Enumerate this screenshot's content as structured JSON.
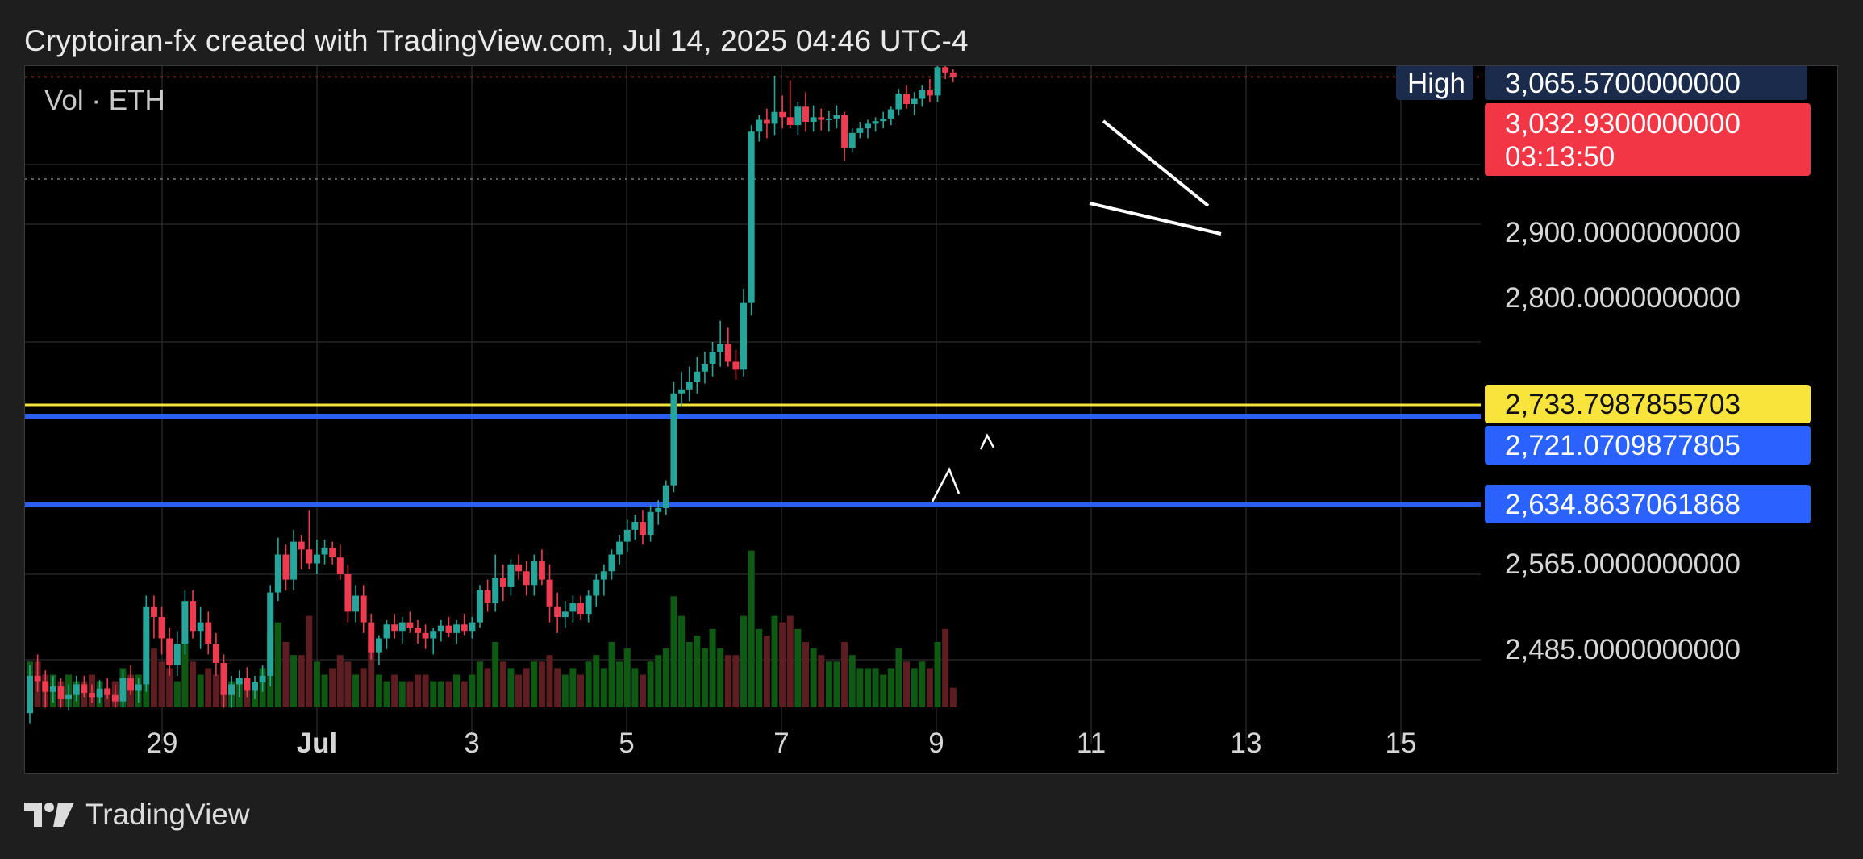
{
  "header": {
    "title": "Cryptoiran-fx created with TradingView.com, Jul 14, 2025 04:46 UTC-4"
  },
  "footer": {
    "brand": "TradingView"
  },
  "colors": {
    "up": "#26a69a",
    "down": "#ef3b50",
    "vol_up": "#0f5a12",
    "vol_down": "#5e1d21",
    "yellow_line": "#f6e33c",
    "blue_line": "#2c5ff0",
    "high_badge": "#1a2b4c",
    "last_badge": "#f23645",
    "blue_badge": "#2962ff",
    "yellow_badge": "#f8e43a"
  },
  "chart_data": {
    "type": "candlestick",
    "symbol": "ETH",
    "volume_legend": "Vol · ETH",
    "x_ticks": [
      "29",
      "Jul",
      "3",
      "5",
      "7",
      "9",
      "11",
      "13",
      "15"
    ],
    "y_ticks": [
      "2,900.0000000000",
      "2,800.0000000000",
      "2,565.0000000000",
      "2,485.0000000000"
    ],
    "high_label": "High",
    "high_value": "3,065.5700000000",
    "last_price": "3,032.9300000000",
    "countdown": "03:13:50",
    "levels": [
      {
        "label": "2,733.7987855703",
        "price": 2733.7987855703,
        "color": "yellow"
      },
      {
        "label": "2,721.0709877805",
        "price": 2721.0709877805,
        "color": "blue"
      },
      {
        "label": "2,634.8637061868",
        "price": 2634.8637061868,
        "color": "blue"
      }
    ],
    "candles": [
      [
        2435,
        2480,
        2425,
        2470,
        7
      ],
      [
        2470,
        2490,
        2455,
        2465,
        7
      ],
      [
        2465,
        2475,
        2440,
        2455,
        5
      ],
      [
        2455,
        2470,
        2445,
        2460,
        5
      ],
      [
        2460,
        2468,
        2440,
        2448,
        4
      ],
      [
        2448,
        2462,
        2438,
        2452,
        5
      ],
      [
        2452,
        2470,
        2446,
        2462,
        4
      ],
      [
        2462,
        2470,
        2450,
        2454,
        4
      ],
      [
        2454,
        2462,
        2445,
        2450,
        5
      ],
      [
        2450,
        2466,
        2444,
        2458,
        4
      ],
      [
        2458,
        2468,
        2448,
        2452,
        3
      ],
      [
        2452,
        2462,
        2440,
        2446,
        4
      ],
      [
        2446,
        2475,
        2440,
        2468,
        6
      ],
      [
        2468,
        2480,
        2452,
        2456,
        5
      ],
      [
        2456,
        2468,
        2445,
        2462,
        5
      ],
      [
        2462,
        2545,
        2455,
        2535,
        12
      ],
      [
        2535,
        2545,
        2505,
        2525,
        9
      ],
      [
        2525,
        2535,
        2490,
        2505,
        7
      ],
      [
        2505,
        2515,
        2470,
        2480,
        6
      ],
      [
        2480,
        2512,
        2470,
        2500,
        4
      ],
      [
        2500,
        2550,
        2490,
        2540,
        10
      ],
      [
        2540,
        2550,
        2505,
        2512,
        7
      ],
      [
        2512,
        2535,
        2495,
        2520,
        5
      ],
      [
        2520,
        2530,
        2490,
        2500,
        6
      ],
      [
        2500,
        2510,
        2470,
        2482,
        5
      ],
      [
        2482,
        2490,
        2440,
        2452,
        5
      ],
      [
        2452,
        2470,
        2440,
        2462,
        4
      ],
      [
        2462,
        2475,
        2450,
        2468,
        4
      ],
      [
        2468,
        2478,
        2450,
        2456,
        4
      ],
      [
        2456,
        2470,
        2448,
        2464,
        3
      ],
      [
        2464,
        2480,
        2455,
        2470,
        6
      ],
      [
        2470,
        2555,
        2460,
        2548,
        11
      ],
      [
        2548,
        2602,
        2540,
        2585,
        13
      ],
      [
        2585,
        2595,
        2550,
        2560,
        10
      ],
      [
        2560,
        2610,
        2550,
        2598,
        8
      ],
      [
        2598,
        2605,
        2570,
        2590,
        8
      ],
      [
        2590,
        2630,
        2570,
        2576,
        14
      ],
      [
        2576,
        2600,
        2565,
        2585,
        7
      ],
      [
        2585,
        2600,
        2575,
        2592,
        5
      ],
      [
        2592,
        2598,
        2575,
        2582,
        6
      ],
      [
        2582,
        2595,
        2560,
        2565,
        8
      ],
      [
        2565,
        2575,
        2520,
        2530,
        7
      ],
      [
        2530,
        2555,
        2520,
        2545,
        5
      ],
      [
        2545,
        2555,
        2510,
        2520,
        6
      ],
      [
        2520,
        2528,
        2485,
        2492,
        10
      ],
      [
        2492,
        2508,
        2480,
        2505,
        5
      ],
      [
        2505,
        2522,
        2495,
        2518,
        4
      ],
      [
        2518,
        2528,
        2505,
        2512,
        5
      ],
      [
        2512,
        2525,
        2500,
        2520,
        4
      ],
      [
        2520,
        2530,
        2510,
        2515,
        4
      ],
      [
        2515,
        2522,
        2500,
        2510,
        5
      ],
      [
        2510,
        2518,
        2495,
        2505,
        5
      ],
      [
        2505,
        2515,
        2490,
        2512,
        4
      ],
      [
        2512,
        2522,
        2502,
        2517,
        4
      ],
      [
        2517,
        2525,
        2506,
        2510,
        4
      ],
      [
        2510,
        2522,
        2500,
        2518,
        5
      ],
      [
        2518,
        2528,
        2508,
        2512,
        4
      ],
      [
        2512,
        2525,
        2505,
        2520,
        5
      ],
      [
        2520,
        2555,
        2515,
        2550,
        7
      ],
      [
        2550,
        2560,
        2530,
        2538,
        6
      ],
      [
        2538,
        2585,
        2530,
        2562,
        10
      ],
      [
        2562,
        2575,
        2540,
        2553,
        7
      ],
      [
        2553,
        2580,
        2545,
        2575,
        6
      ],
      [
        2575,
        2585,
        2560,
        2568,
        5
      ],
      [
        2568,
        2578,
        2545,
        2555,
        6
      ],
      [
        2555,
        2585,
        2545,
        2578,
        7
      ],
      [
        2578,
        2590,
        2555,
        2560,
        7
      ],
      [
        2560,
        2575,
        2520,
        2535,
        8
      ],
      [
        2535,
        2548,
        2510,
        2525,
        6
      ],
      [
        2525,
        2540,
        2515,
        2530,
        5
      ],
      [
        2530,
        2545,
        2520,
        2538,
        6
      ],
      [
        2538,
        2545,
        2522,
        2528,
        5
      ],
      [
        2528,
        2550,
        2520,
        2545,
        7
      ],
      [
        2545,
        2565,
        2535,
        2560,
        8
      ],
      [
        2560,
        2575,
        2545,
        2568,
        6
      ],
      [
        2568,
        2590,
        2560,
        2585,
        10
      ],
      [
        2585,
        2605,
        2575,
        2598,
        7
      ],
      [
        2598,
        2620,
        2588,
        2610,
        9
      ],
      [
        2610,
        2625,
        2600,
        2618,
        6
      ],
      [
        2618,
        2630,
        2595,
        2605,
        5
      ],
      [
        2605,
        2635,
        2598,
        2628,
        7
      ],
      [
        2628,
        2640,
        2615,
        2632,
        8
      ],
      [
        2632,
        2660,
        2625,
        2655,
        9
      ],
      [
        2655,
        2760,
        2648,
        2748,
        17
      ],
      [
        2748,
        2770,
        2735,
        2752,
        14
      ],
      [
        2752,
        2775,
        2740,
        2760,
        10
      ],
      [
        2760,
        2785,
        2748,
        2770,
        11
      ],
      [
        2770,
        2790,
        2758,
        2778,
        9
      ],
      [
        2778,
        2800,
        2765,
        2790,
        12
      ],
      [
        2790,
        2812,
        2775,
        2798,
        9
      ],
      [
        2798,
        2808,
        2775,
        2780,
        8
      ],
      [
        2780,
        2792,
        2762,
        2772,
        8
      ],
      [
        2772,
        2830,
        2765,
        2822,
        14
      ],
      [
        2822,
        2960,
        2815,
        2950,
        24
      ],
      [
        2950,
        2975,
        2935,
        2968,
        12
      ],
      [
        2968,
        2985,
        2940,
        2962,
        11
      ],
      [
        2962,
        3035,
        2945,
        2980,
        14
      ],
      [
        2980,
        3005,
        2955,
        2972,
        13
      ],
      [
        2972,
        3028,
        2955,
        2960,
        14
      ],
      [
        2960,
        2995,
        2945,
        2988,
        12
      ],
      [
        2988,
        3010,
        2950,
        2965,
        10
      ],
      [
        2965,
        2990,
        2950,
        2972,
        9
      ],
      [
        2972,
        2985,
        2952,
        2968,
        8
      ],
      [
        2968,
        2982,
        2950,
        2970,
        7
      ],
      [
        2970,
        2990,
        2955,
        2975,
        7
      ],
      [
        2975,
        2980,
        2905,
        2925,
        10
      ],
      [
        2925,
        2955,
        2918,
        2948,
        8
      ],
      [
        2948,
        2965,
        2940,
        2955,
        6
      ],
      [
        2955,
        2968,
        2940,
        2962,
        6
      ],
      [
        2962,
        2972,
        2950,
        2966,
        6
      ],
      [
        2966,
        2980,
        2955,
        2970,
        5
      ],
      [
        2970,
        2988,
        2960,
        2984,
        6
      ],
      [
        2984,
        3015,
        2975,
        3008,
        9
      ],
      [
        3008,
        3020,
        2985,
        2992,
        7
      ],
      [
        2992,
        3010,
        2975,
        3000,
        6
      ],
      [
        3000,
        3020,
        2988,
        3014,
        7
      ],
      [
        3014,
        3030,
        2995,
        3005,
        6
      ],
      [
        3005,
        3055,
        2995,
        3048,
        10
      ],
      [
        3048,
        3065,
        3030,
        3040,
        12
      ],
      [
        3040,
        3045,
        3025,
        3033,
        3
      ]
    ]
  }
}
